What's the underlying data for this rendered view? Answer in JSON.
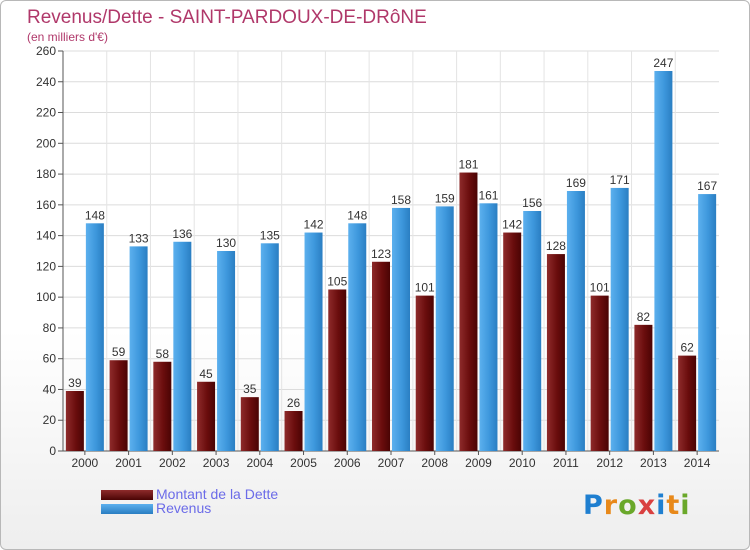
{
  "header": {
    "title": "Revenus/Dette - SAINT-PARDOUX-DE-DRôNE",
    "subtitle": "(en milliers d'€)"
  },
  "legend": {
    "items": [
      {
        "label": "Montant de la Dette",
        "color": "#6e0f0f"
      },
      {
        "label": "Revenus",
        "color": "#3d97dc"
      }
    ]
  },
  "logo": {
    "text": "Proxiti",
    "letters": [
      {
        "char": "P",
        "color": "#1f7fd0"
      },
      {
        "char": "r",
        "color": "#e8891a"
      },
      {
        "char": "o",
        "color": "#6aa82a"
      },
      {
        "char": "x",
        "color": "#d94040"
      },
      {
        "char": "i",
        "color": "#1f7fd0"
      },
      {
        "char": "t",
        "color": "#e8891a"
      },
      {
        "char": "i",
        "color": "#6aa82a"
      }
    ]
  },
  "chart_data": {
    "type": "bar",
    "title": "Revenus/Dette - SAINT-PARDOUX-DE-DRôNE",
    "subtitle": "(en milliers d'€)",
    "categories": [
      "2000",
      "2001",
      "2002",
      "2003",
      "2004",
      "2005",
      "2006",
      "2007",
      "2008",
      "2009",
      "2010",
      "2011",
      "2012",
      "2013",
      "2014"
    ],
    "series": [
      {
        "name": "Montant de la Dette",
        "color": "#6e0f0f",
        "values": [
          39,
          59,
          58,
          45,
          35,
          26,
          105,
          123,
          101,
          181,
          142,
          128,
          101,
          82,
          62
        ]
      },
      {
        "name": "Revenus",
        "color": "#3d97dc",
        "values": [
          148,
          133,
          136,
          130,
          135,
          142,
          148,
          158,
          159,
          161,
          156,
          169,
          171,
          247,
          167
        ]
      }
    ],
    "ylim": [
      0,
      260
    ],
    "yticks": [
      0,
      20,
      40,
      60,
      80,
      100,
      120,
      140,
      160,
      180,
      200,
      220,
      240,
      260
    ],
    "grid": true,
    "legend_position": "bottom-left"
  }
}
